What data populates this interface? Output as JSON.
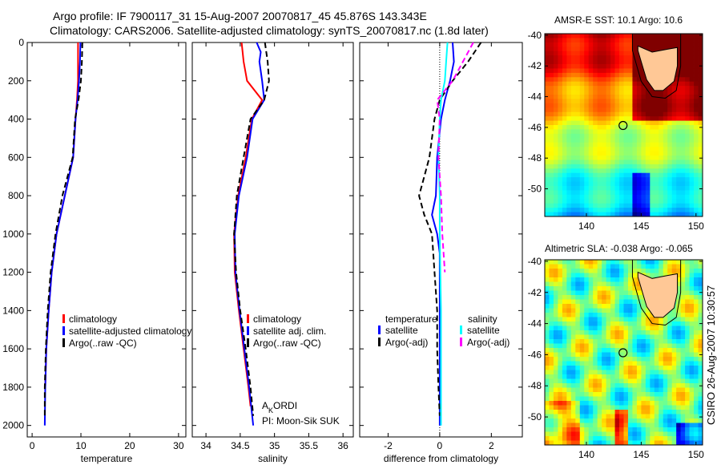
{
  "title": {
    "line1": "Argo profile: IF 7900117_31 15-Aug-2007 20070817_45 45.876S 143.343E",
    "line2": "Climatology: CARS2006. Satellite-adjusted climatology: synTS_20070817.nc (1.8d later)"
  },
  "side_label": "CSIRO 26-Aug-2007 10:30:57",
  "colors": {
    "red": "#ff0000",
    "blue": "#0000ff",
    "black": "#000000",
    "cyan": "#00ffff",
    "magenta": "#ff00ff",
    "land": "#ffc896"
  },
  "chart_data": [
    {
      "type": "line",
      "xlabel": "temperature",
      "xlim": [
        -1,
        31.5
      ],
      "ylim": [
        0,
        2060
      ],
      "y_reversed": true,
      "xticks": [
        0,
        10,
        20,
        30
      ],
      "yticks": [
        0,
        200,
        400,
        600,
        800,
        1000,
        1200,
        1400,
        1600,
        1800,
        2000
      ],
      "legend": [
        "climatology",
        "satellite-adjusted climatology",
        "Argo(..raw -QC)"
      ],
      "series": [
        {
          "name": "climatology",
          "color": "#ff0000",
          "dash": false,
          "depth": [
            0,
            100,
            200,
            300,
            400,
            600,
            800,
            1000,
            1200,
            1400,
            1600,
            1800
          ],
          "values": [
            9.4,
            9.4,
            9.4,
            9.2,
            8.9,
            8.4,
            6.7,
            5.0,
            4.0,
            3.4,
            2.9,
            2.7
          ]
        },
        {
          "name": "satellite-adjusted climatology",
          "color": "#0000ff",
          "dash": false,
          "depth": [
            0,
            100,
            200,
            300,
            400,
            600,
            800,
            1000,
            1200,
            1400,
            1600,
            1800,
            2000
          ],
          "values": [
            9.9,
            9.8,
            9.6,
            9.3,
            8.9,
            8.4,
            6.7,
            5.0,
            4.0,
            3.4,
            2.9,
            2.7,
            2.6
          ]
        },
        {
          "name": "Argo(..raw -QC)",
          "color": "#000000",
          "dash": true,
          "depth": [
            0,
            100,
            200,
            300,
            400,
            600,
            800,
            1000,
            1200,
            1400,
            1600,
            1800,
            1950
          ],
          "values": [
            10.3,
            10.2,
            10.0,
            9.5,
            8.8,
            8.3,
            6.2,
            4.8,
            3.8,
            3.2,
            2.8,
            2.6,
            2.6
          ]
        }
      ]
    },
    {
      "type": "line",
      "xlabel": "salinity",
      "xlim": [
        33.8,
        36.15
      ],
      "ylim": [
        0,
        2060
      ],
      "y_reversed": true,
      "xticks": [
        34,
        34.5,
        35,
        35.5,
        36
      ],
      "legend": [
        "climatology",
        "satellite adj. clim.",
        "Argo(..raw -QC)"
      ],
      "annotation": {
        "line1_main": "A",
        "line1_sub": "K",
        "line1_rest": "ORDI",
        "line2": "PI: Moon-Sik SUK"
      },
      "series": [
        {
          "name": "climatology",
          "color": "#ff0000",
          "dash": false,
          "depth": [
            0,
            100,
            200,
            300,
            400,
            600,
            800,
            1000,
            1200,
            1400,
            1600,
            1800,
            1900
          ],
          "values": [
            34.52,
            34.55,
            34.6,
            34.82,
            34.67,
            34.58,
            34.47,
            34.41,
            34.42,
            34.48,
            34.55,
            34.62,
            34.65
          ]
        },
        {
          "name": "satellite adj. clim.",
          "color": "#0000ff",
          "dash": false,
          "depth": [
            0,
            50,
            100,
            200,
            300,
            400,
            600,
            800,
            1000,
            1200,
            1400,
            1600,
            1800,
            2000
          ],
          "values": [
            34.74,
            34.8,
            34.78,
            34.82,
            34.85,
            34.68,
            34.6,
            34.48,
            34.42,
            34.43,
            34.49,
            34.56,
            34.63,
            34.69
          ]
        },
        {
          "name": "Argo(..raw -QC)",
          "color": "#000000",
          "dash": true,
          "depth": [
            0,
            100,
            200,
            300,
            400,
            600,
            800,
            1000,
            1200,
            1400,
            1600,
            1800,
            1950
          ],
          "values": [
            34.86,
            34.9,
            34.92,
            34.85,
            34.65,
            34.55,
            34.45,
            34.41,
            34.44,
            34.5,
            34.58,
            34.65,
            34.69
          ]
        }
      ]
    },
    {
      "type": "line",
      "xlabel": "difference from climatology",
      "xlim": [
        -3.1,
        3.2
      ],
      "ylim": [
        0,
        2060
      ],
      "y_reversed": true,
      "xticks": [
        -2,
        0,
        2
      ],
      "legend_temperature_title": "temperature",
      "legend_salinity_title": "salinity",
      "legend": [
        "satellite",
        "Argo(-adj)",
        "satellite",
        "Argo(-adj)"
      ],
      "series": [
        {
          "name": "temperature satellite",
          "color": "#0000ff",
          "dash": false,
          "depth": [
            0,
            100,
            200,
            300,
            400,
            600,
            800,
            900,
            1000,
            1100,
            1400,
            1800,
            2000
          ],
          "values": [
            0.5,
            0.55,
            0.4,
            0.2,
            0.05,
            -0.1,
            -0.15,
            -0.3,
            -0.1,
            0.0,
            0.0,
            0.0,
            0.0
          ]
        },
        {
          "name": "temperature Argo(-adj)",
          "color": "#000000",
          "dash": true,
          "depth": [
            0,
            100,
            200,
            300,
            400,
            600,
            700,
            800,
            900,
            1000,
            1200,
            1400,
            1600,
            1800,
            1950
          ],
          "values": [
            1.6,
            1.1,
            0.5,
            0.0,
            -0.2,
            -0.4,
            -0.6,
            -0.8,
            -0.6,
            -0.3,
            -0.2,
            -0.1,
            -0.1,
            -0.05,
            0.0
          ]
        },
        {
          "name": "salinity satellite",
          "color": "#00ffff",
          "dash": false,
          "depth": [
            0,
            100,
            200,
            300,
            400,
            600,
            800,
            1000,
            1400,
            1800,
            2000
          ],
          "values": [
            0.3,
            0.25,
            0.2,
            0.05,
            0.0,
            -0.05,
            0.0,
            0.0,
            0.05,
            0.05,
            0.05
          ]
        },
        {
          "name": "salinity Argo(-adj)",
          "color": "#ff00ff",
          "dash": true,
          "depth": [
            0,
            100,
            200,
            300,
            400,
            600,
            800,
            1000,
            1200
          ],
          "values": [
            1.3,
            0.9,
            0.5,
            -0.1,
            0.0,
            -0.05,
            0.05,
            0.1,
            0.2
          ]
        }
      ]
    },
    {
      "type": "heatmap",
      "title": "AMSR-E SST: 10.1 Argo: 10.6",
      "xlim": [
        136.2,
        150.6
      ],
      "ylim": [
        -51.8,
        -39.9
      ],
      "xticks": [
        140,
        145,
        150
      ],
      "yticks": [
        -40,
        -42,
        -44,
        -46,
        -48,
        -50
      ],
      "marker": {
        "lon": 143.343,
        "lat": -45.876,
        "color": "#ffff00"
      }
    },
    {
      "type": "heatmap",
      "title": "Altimetric SLA: -0.038 Argo: -0.065",
      "xlim": [
        136.2,
        150.6
      ],
      "ylim": [
        -51.8,
        -39.9
      ],
      "xticks": [
        140,
        145,
        150
      ],
      "yticks": [
        -40,
        -42,
        -44,
        -46,
        -48,
        -50
      ],
      "marker": {
        "lon": 143.343,
        "lat": -45.876,
        "color": "#00c000"
      }
    }
  ]
}
